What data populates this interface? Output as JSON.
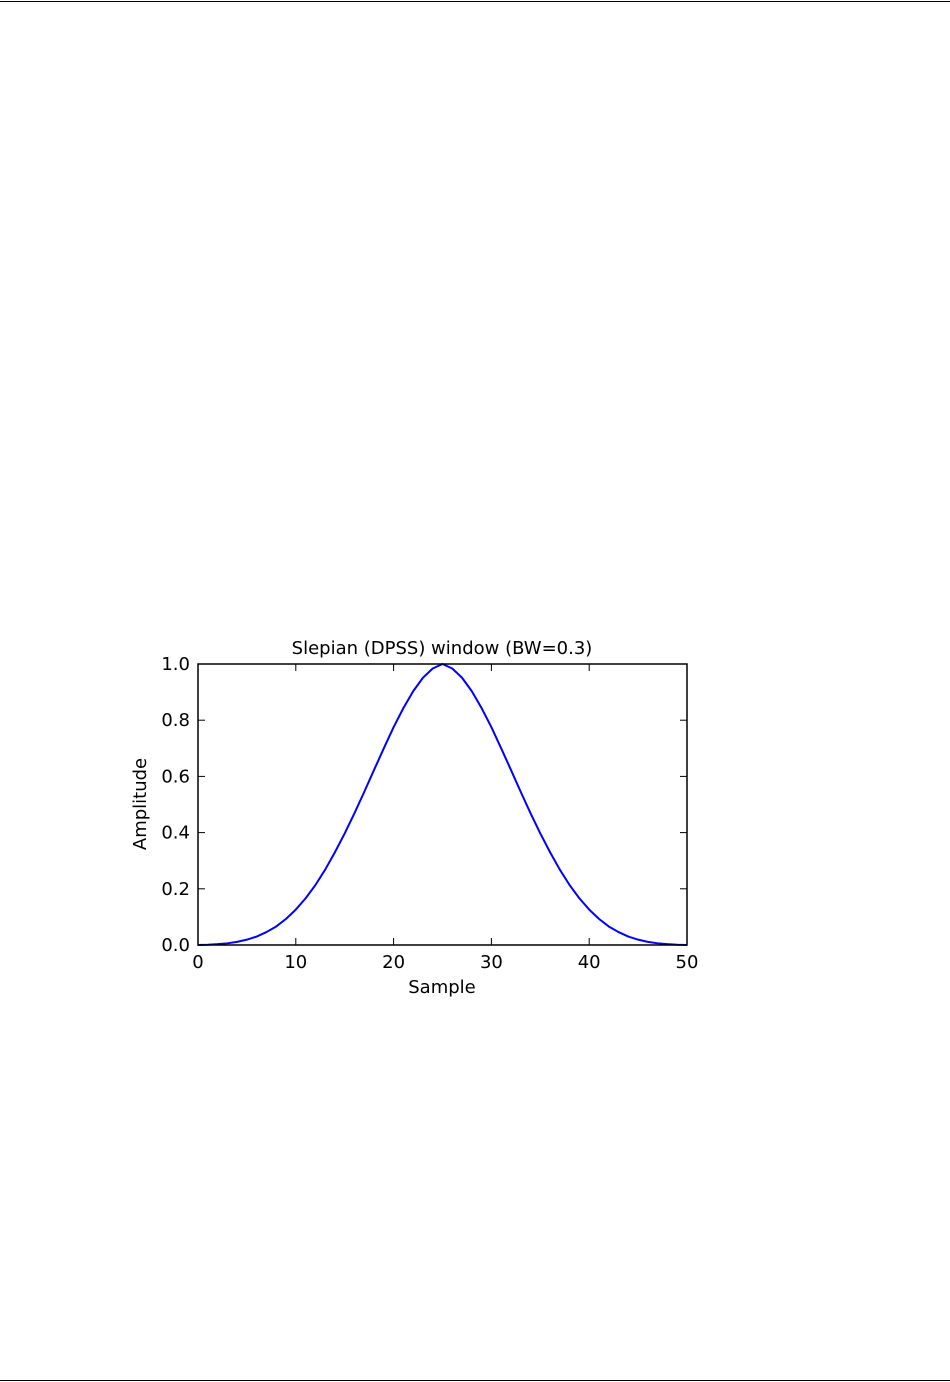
{
  "chart_data": {
    "type": "line",
    "title": "Slepian (DPSS) window (BW=0.3)",
    "xlabel": "Sample",
    "ylabel": "Amplitude",
    "xlim": [
      0,
      50
    ],
    "ylim": [
      0.0,
      1.0
    ],
    "xticks": [
      "0",
      "10",
      "20",
      "30",
      "40",
      "50"
    ],
    "yticks": [
      "0.0",
      "0.2",
      "0.4",
      "0.6",
      "0.8",
      "1.0"
    ],
    "grid": false,
    "series": [
      {
        "color": "#0000ff",
        "x": [
          0,
          1,
          2,
          3,
          4,
          5,
          6,
          7,
          8,
          9,
          10,
          11,
          12,
          13,
          14,
          15,
          16,
          17,
          18,
          19,
          20,
          21,
          22,
          23,
          24,
          25,
          26,
          27,
          28,
          29,
          30,
          31,
          32,
          33,
          34,
          35,
          36,
          37,
          38,
          39,
          40,
          41,
          42,
          43,
          44,
          45,
          46,
          47,
          48,
          49,
          50
        ],
        "y": [
          0.0,
          0.001,
          0.003,
          0.006,
          0.011,
          0.019,
          0.03,
          0.046,
          0.066,
          0.093,
          0.126,
          0.166,
          0.213,
          0.268,
          0.33,
          0.397,
          0.469,
          0.545,
          0.623,
          0.7,
          0.775,
          0.843,
          0.903,
          0.951,
          0.984,
          1.0,
          0.984,
          0.951,
          0.903,
          0.843,
          0.775,
          0.7,
          0.623,
          0.545,
          0.469,
          0.397,
          0.33,
          0.268,
          0.213,
          0.166,
          0.126,
          0.093,
          0.066,
          0.046,
          0.03,
          0.019,
          0.011,
          0.006,
          0.003,
          0.001,
          0.0
        ]
      }
    ]
  }
}
